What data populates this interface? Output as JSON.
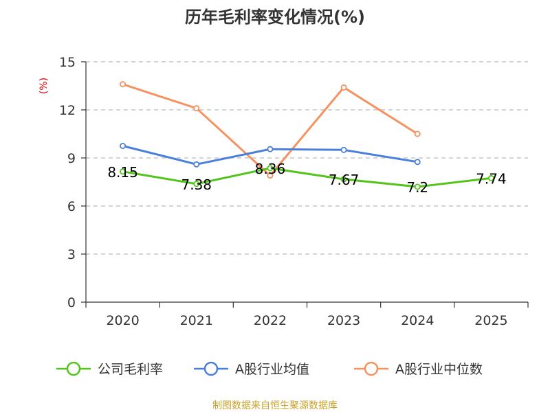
{
  "chart_data": {
    "type": "line",
    "title": "历年毛利率变化情况(%)",
    "ylabel": "(%)",
    "xlabel": "",
    "categories": [
      "2020",
      "2021",
      "2022",
      "2023",
      "2024",
      "2025"
    ],
    "ylim": [
      0,
      15
    ],
    "yticks": [
      0,
      3,
      6,
      9,
      12,
      15
    ],
    "grid": true,
    "legend_position": "bottom",
    "series": [
      {
        "name": "公司毛利率",
        "color": "#52c41a",
        "values": [
          8.15,
          7.38,
          8.36,
          7.67,
          7.2,
          7.74
        ],
        "labels": [
          "8.15",
          "7.38",
          "8.36",
          "7.67",
          "7.2",
          "7.74"
        ],
        "show_labels": true
      },
      {
        "name": "A股行业均值",
        "color": "#4a7fdb",
        "values": [
          9.75,
          8.6,
          9.55,
          9.5,
          8.75,
          null
        ],
        "show_labels": false
      },
      {
        "name": "A股行业中位数",
        "color": "#f59260",
        "values": [
          13.6,
          12.1,
          7.9,
          13.4,
          10.5,
          null
        ],
        "show_labels": false
      }
    ]
  },
  "source": "制图数据来自恒生聚源数据库",
  "colors": {
    "axis": "#333333",
    "grid": "#bbbbbb",
    "unit": "#e00000",
    "source": "#c9a227",
    "title": "#333333"
  }
}
